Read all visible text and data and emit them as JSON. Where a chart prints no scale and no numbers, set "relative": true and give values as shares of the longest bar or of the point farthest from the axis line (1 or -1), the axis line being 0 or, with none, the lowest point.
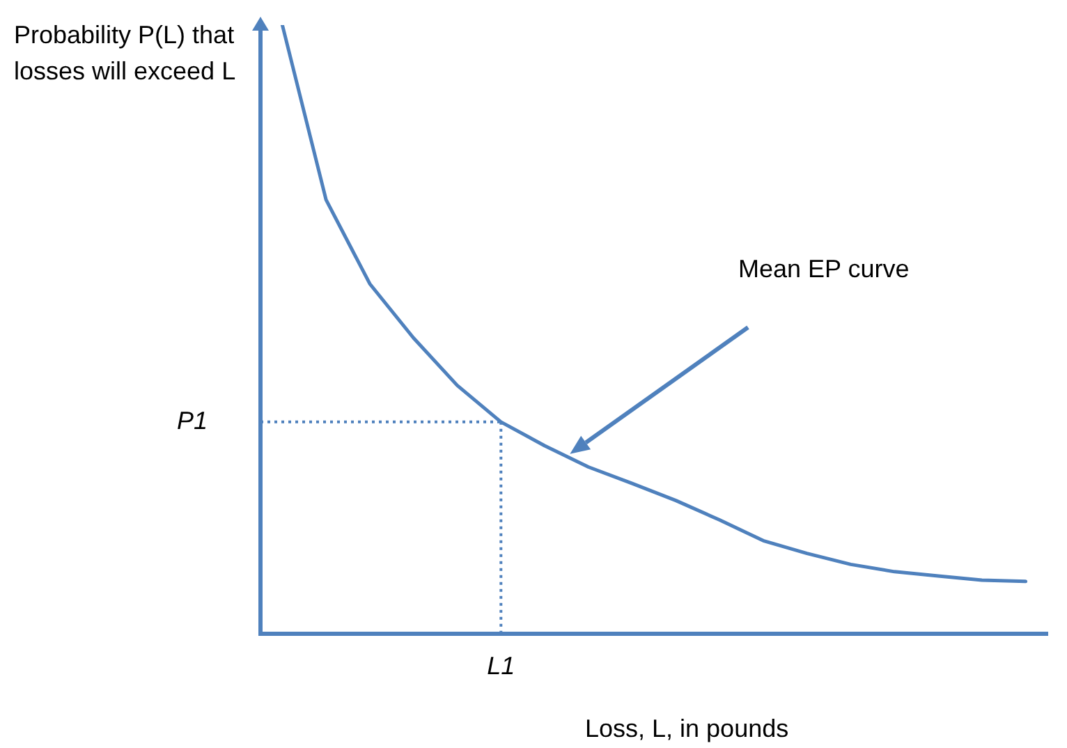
{
  "chart_data": {
    "type": "line",
    "relative": true,
    "xlabel": "Loss, L, in pounds",
    "ylabel": "Probability P(L) that losses will exceed L",
    "categories": [
      null,
      null,
      null,
      null,
      null,
      null,
      null,
      null,
      null,
      null,
      null,
      null,
      null,
      null,
      null,
      null,
      null,
      null
    ],
    "series": [
      {
        "color": "#4f81bd",
        "values": [
          1.0,
          0.713,
          0.575,
          0.486,
          0.408,
          0.348,
          0.309,
          0.274,
          0.247,
          0.219,
          0.187,
          0.153,
          0.132,
          0.114,
          0.102,
          0.095,
          0.088,
          0.086
        ]
      }
    ],
    "ref_lines": [
      {
        "axis": "y",
        "value": 0.348,
        "label": "P1",
        "line_style": "dotted",
        "color": "#4f81bd"
      }
    ],
    "annotations": [
      "Mean EP curve",
      "L1"
    ],
    "tick_labels": false,
    "grid": false,
    "legend": false,
    "marker": "none",
    "line_style": "solid"
  }
}
